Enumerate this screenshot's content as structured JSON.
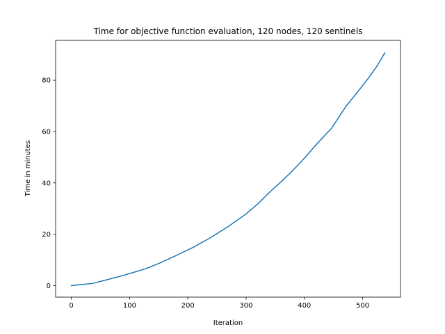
{
  "chart_data": {
    "type": "line",
    "title": "Time for objective function evaluation, 120 nodes, 120 sentinels",
    "xlabel": "Iteration",
    "ylabel": "Time in minutes",
    "xlim": [
      -27,
      565
    ],
    "ylim": [
      -4.5,
      95.5
    ],
    "xticks": [
      0,
      100,
      200,
      300,
      400,
      500
    ],
    "yticks": [
      0,
      20,
      40,
      60,
      80
    ],
    "grid": false,
    "legend": "none",
    "series": [
      {
        "color": "#1f77b4",
        "x": [
          0,
          36,
          60,
          90,
          128,
          150,
          180,
          210,
          240,
          270,
          300,
          320,
          340,
          360,
          380,
          400,
          420,
          447,
          472,
          490,
          510,
          525,
          538
        ],
        "y": [
          0,
          0.8,
          2.2,
          4.0,
          6.6,
          8.6,
          11.7,
          15.0,
          18.8,
          23.1,
          27.9,
          31.8,
          36.3,
          40.4,
          44.8,
          49.6,
          54.8,
          61.4,
          70.0,
          75.0,
          80.8,
          85.6,
          90.6
        ]
      }
    ]
  }
}
